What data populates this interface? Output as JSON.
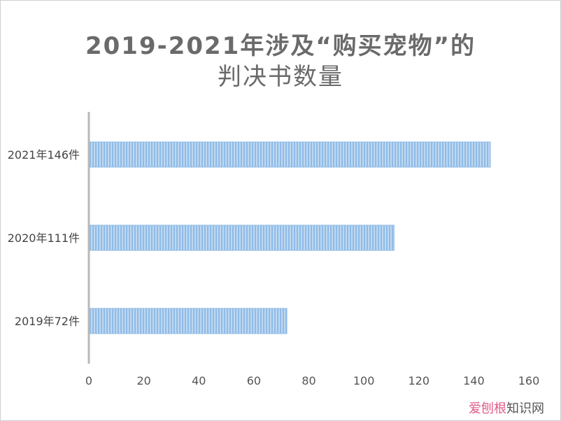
{
  "chart_data": {
    "type": "bar",
    "orientation": "horizontal",
    "title_line1": "2019-2021年涉及“购买宠物”的",
    "title_line2": "判决书数量",
    "categories": [
      "2019年72件",
      "2020年111件",
      "2021年146件"
    ],
    "values": [
      72,
      111,
      146
    ],
    "xlim": [
      0,
      160
    ],
    "x_ticks": [
      "0",
      "20",
      "40",
      "60",
      "80",
      "100",
      "120",
      "140",
      "160"
    ],
    "grid": false,
    "legend": "none",
    "bar_color": "#8fbbe6",
    "bar_stripe_color": "#ffffff"
  },
  "watermark": {
    "part1": "爱刨根",
    "part2": "知识网"
  }
}
